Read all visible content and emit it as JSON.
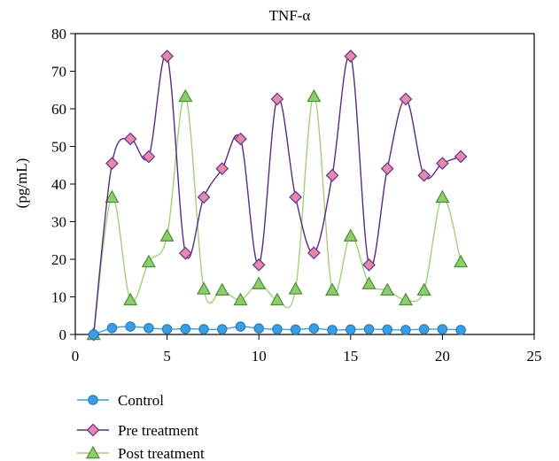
{
  "chart_data": {
    "type": "line",
    "title": "TNF-α",
    "ylabel": "(pg/mL)",
    "xlabel": "",
    "xlim": [
      0,
      25
    ],
    "ylim": [
      0,
      80
    ],
    "x_ticks": [
      0,
      5,
      10,
      15,
      20,
      25
    ],
    "y_ticks": [
      0,
      10,
      20,
      30,
      40,
      50,
      60,
      70,
      80
    ],
    "grid": false,
    "legend_position": "bottom-left",
    "x": [
      1,
      2,
      3,
      4,
      5,
      6,
      7,
      8,
      9,
      10,
      11,
      12,
      13,
      14,
      15,
      16,
      17,
      18,
      19,
      20,
      21
    ],
    "series": [
      {
        "name": "Control",
        "marker": "circle",
        "line_color": "#3aa0d8",
        "marker_fill": "#3a9ee0",
        "marker_stroke": "#2a7fbf",
        "values": [
          0,
          1.7,
          2.1,
          1.7,
          1.4,
          1.5,
          1.4,
          1.4,
          2.1,
          1.6,
          1.4,
          1.3,
          1.6,
          1.2,
          1.3,
          1.4,
          1.3,
          1.2,
          1.4,
          1.4,
          1.2
        ]
      },
      {
        "name": "Pre treatment",
        "marker": "diamond",
        "line_color": "#5b2a86",
        "marker_fill": "#e88aa5",
        "marker_stroke": "#6a3a9a",
        "values": [
          0,
          45.5,
          52,
          47.3,
          74,
          21.6,
          36.5,
          44.1,
          52,
          18.5,
          62.6,
          36.5,
          21.7,
          42.3,
          74,
          18.5,
          44.1,
          62.6,
          42.3,
          45.5,
          47.3
        ]
      },
      {
        "name": "Post treatment",
        "marker": "triangle",
        "line_color": "#9fd27a",
        "marker_fill": "#8ccf6a",
        "marker_stroke": "#4f8a3a",
        "values": [
          0,
          36.5,
          9.2,
          19.3,
          26.2,
          63.3,
          12.1,
          11.8,
          9.2,
          13.5,
          9.2,
          12.1,
          63.3,
          11.8,
          26.2,
          13.5,
          11.8,
          9.2,
          11.8,
          36.5,
          19.3
        ]
      }
    ]
  }
}
